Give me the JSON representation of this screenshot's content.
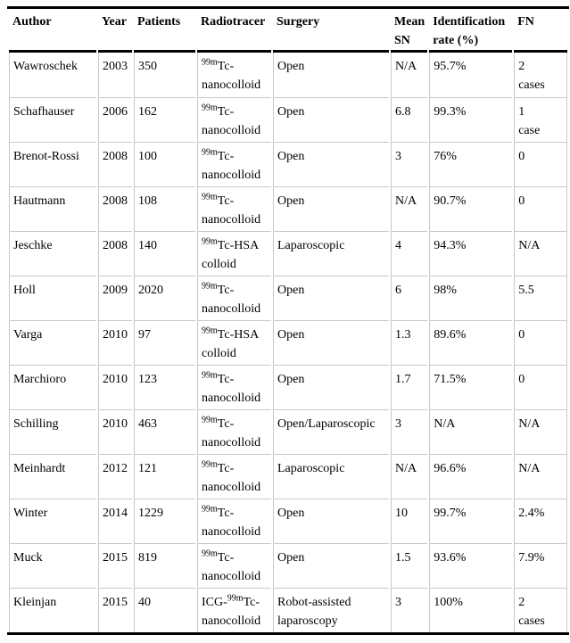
{
  "colors": {
    "heavy_border": "#000000",
    "light_border": "#c9c9c9",
    "text": "#000000",
    "background": "#ffffff"
  },
  "table": {
    "columns": [
      {
        "key": "author",
        "label": "Author"
      },
      {
        "key": "year",
        "label": "Year"
      },
      {
        "key": "patients",
        "label": "Patients"
      },
      {
        "key": "radiotracer",
        "label": "Radiotracer"
      },
      {
        "key": "surgery",
        "label": "Surgery"
      },
      {
        "key": "mean_sn",
        "label": "Mean\nSN"
      },
      {
        "key": "id_rate",
        "label": "Identification\nrate (%)"
      },
      {
        "key": "fn",
        "label": "FN"
      }
    ],
    "rows": [
      {
        "author": "Wawroschek",
        "year": "2003",
        "patients": "350",
        "radiotracer": {
          "pre": "",
          "sup": "99m",
          "post": "Tc-\nnanocolloid"
        },
        "surgery": "Open",
        "mean_sn": "N/A",
        "id_rate": "95.7%",
        "fn": "2\ncases"
      },
      {
        "author": "Schafhauser",
        "year": "2006",
        "patients": "162",
        "radiotracer": {
          "pre": "",
          "sup": "99m",
          "post": "Tc-\nnanocolloid"
        },
        "surgery": "Open",
        "mean_sn": "6.8",
        "id_rate": "99.3%",
        "fn": "1\ncase"
      },
      {
        "author": "Brenot-Rossi",
        "year": "2008",
        "patients": "100",
        "radiotracer": {
          "pre": "",
          "sup": "99m",
          "post": "Tc-\nnanocolloid"
        },
        "surgery": "Open",
        "mean_sn": "3",
        "id_rate": "76%",
        "fn": "0"
      },
      {
        "author": "Hautmann",
        "year": "2008",
        "patients": "108",
        "radiotracer": {
          "pre": "",
          "sup": "99m",
          "post": "Tc-\nnanocolloid"
        },
        "surgery": "Open",
        "mean_sn": "N/A",
        "id_rate": "90.7%",
        "fn": "0"
      },
      {
        "author": "Jeschke",
        "year": "2008",
        "patients": "140",
        "radiotracer": {
          "pre": "",
          "sup": "99m",
          "post": "Tc-HSA\ncolloid"
        },
        "surgery": "Laparoscopic",
        "mean_sn": "4",
        "id_rate": "94.3%",
        "fn": "N/A"
      },
      {
        "author": "Holl",
        "year": "2009",
        "patients": "2020",
        "radiotracer": {
          "pre": "",
          "sup": "99m",
          "post": "Tc-\nnanocolloid"
        },
        "surgery": "Open",
        "mean_sn": "6",
        "id_rate": "98%",
        "fn": "5.5"
      },
      {
        "author": "Varga",
        "year": "2010",
        "patients": "97",
        "radiotracer": {
          "pre": "",
          "sup": "99m",
          "post": "Tc-HSA\ncolloid"
        },
        "surgery": "Open",
        "mean_sn": "1.3",
        "id_rate": "89.6%",
        "fn": "0"
      },
      {
        "author": "Marchioro",
        "year": "2010",
        "patients": "123",
        "radiotracer": {
          "pre": "",
          "sup": "99m",
          "post": "Tc-\nnanocolloid"
        },
        "surgery": "Open",
        "mean_sn": "1.7",
        "id_rate": "71.5%",
        "fn": "0"
      },
      {
        "author": "Schilling",
        "year": "2010",
        "patients": "463",
        "radiotracer": {
          "pre": "",
          "sup": "99m",
          "post": "Tc-\nnanocolloid"
        },
        "surgery": "Open/Laparoscopic",
        "mean_sn": "3",
        "id_rate": "N/A",
        "fn": "N/A"
      },
      {
        "author": "Meinhardt",
        "year": "2012",
        "patients": "121",
        "radiotracer": {
          "pre": "",
          "sup": "99m",
          "post": "Tc-\nnanocolloid"
        },
        "surgery": "Laparoscopic",
        "mean_sn": "N/A",
        "id_rate": "96.6%",
        "fn": "N/A"
      },
      {
        "author": "Winter",
        "year": "2014",
        "patients": "1229",
        "radiotracer": {
          "pre": "",
          "sup": "99m",
          "post": "Tc-\nnanocolloid"
        },
        "surgery": "Open",
        "mean_sn": "10",
        "id_rate": "99.7%",
        "fn": "2.4%"
      },
      {
        "author": "Muck",
        "year": "2015",
        "patients": "819",
        "radiotracer": {
          "pre": "",
          "sup": "99m",
          "post": "Tc-\nnanocolloid"
        },
        "surgery": "Open",
        "mean_sn": "1.5",
        "id_rate": "93.6%",
        "fn": "7.9%"
      },
      {
        "author": "Kleinjan",
        "year": "2015",
        "patients": "40",
        "radiotracer": {
          "pre": "ICG-",
          "sup": "99m",
          "post": "Tc-\nnanocolloid"
        },
        "surgery": "Robot-assisted\nlaparoscopy",
        "mean_sn": "3",
        "id_rate": "100%",
        "fn": "2\ncases"
      }
    ]
  }
}
